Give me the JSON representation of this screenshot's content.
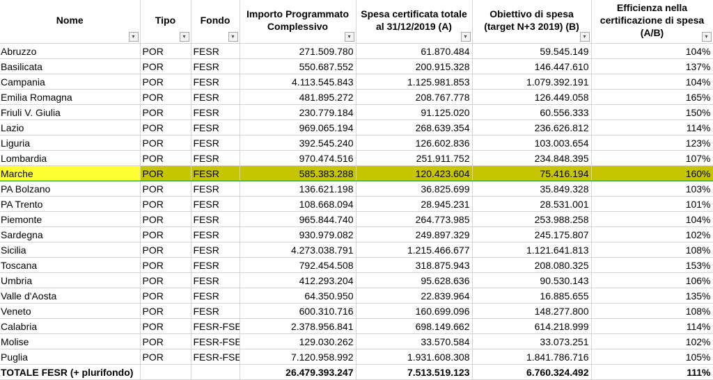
{
  "headers": {
    "nome": "Nome",
    "tipo": "Tipo",
    "fondo": "Fondo",
    "importo": "Importo Programmato Complessivo",
    "spesa": "Spesa certificata totale al 31/12/2019 (A)",
    "obiettivo": "Obiettivo di spesa (target N+3 2019) (B)",
    "efficienza": "Efficienza nella certificazione di spesa (A/B)",
    "filter_glyph": "▾"
  },
  "rows": [
    {
      "nome": "Abruzzo",
      "tipo": "POR",
      "fondo": "FESR",
      "importo": "271.509.780",
      "spesa": "61.870.484",
      "obiettivo": "59.545.149",
      "efficienza": "104%"
    },
    {
      "nome": "Basilicata",
      "tipo": "POR",
      "fondo": "FESR",
      "importo": "550.687.552",
      "spesa": "200.915.328",
      "obiettivo": "146.447.610",
      "efficienza": "137%"
    },
    {
      "nome": "Campania",
      "tipo": "POR",
      "fondo": "FESR",
      "importo": "4.113.545.843",
      "spesa": "1.125.981.853",
      "obiettivo": "1.079.392.191",
      "efficienza": "104%"
    },
    {
      "nome": "Emilia Romagna",
      "tipo": "POR",
      "fondo": "FESR",
      "importo": "481.895.272",
      "spesa": "208.767.778",
      "obiettivo": "126.449.058",
      "efficienza": "165%"
    },
    {
      "nome": "Friuli V. Giulia",
      "tipo": "POR",
      "fondo": "FESR",
      "importo": "230.779.184",
      "spesa": "91.125.020",
      "obiettivo": "60.556.333",
      "efficienza": "150%"
    },
    {
      "nome": "Lazio",
      "tipo": "POR",
      "fondo": "FESR",
      "importo": "969.065.194",
      "spesa": "268.639.354",
      "obiettivo": "236.626.812",
      "efficienza": "114%"
    },
    {
      "nome": "Liguria",
      "tipo": "POR",
      "fondo": "FESR",
      "importo": "392.545.240",
      "spesa": "126.602.836",
      "obiettivo": "103.003.654",
      "efficienza": "123%"
    },
    {
      "nome": "Lombardia",
      "tipo": "POR",
      "fondo": "FESR",
      "importo": "970.474.516",
      "spesa": "251.911.752",
      "obiettivo": "234.848.395",
      "efficienza": "107%"
    },
    {
      "nome": "Marche",
      "tipo": "POR",
      "fondo": "FESR",
      "importo": "585.383.288",
      "spesa": "120.423.604",
      "obiettivo": "75.416.194",
      "efficienza": "160%"
    },
    {
      "nome": "PA Bolzano",
      "tipo": "POR",
      "fondo": "FESR",
      "importo": "136.621.198",
      "spesa": "36.825.699",
      "obiettivo": "35.849.328",
      "efficienza": "103%"
    },
    {
      "nome": "PA Trento",
      "tipo": "POR",
      "fondo": "FESR",
      "importo": "108.668.094",
      "spesa": "28.945.231",
      "obiettivo": "28.531.001",
      "efficienza": "101%"
    },
    {
      "nome": "Piemonte",
      "tipo": "POR",
      "fondo": "FESR",
      "importo": "965.844.740",
      "spesa": "264.773.985",
      "obiettivo": "253.988.258",
      "efficienza": "104%"
    },
    {
      "nome": "Sardegna",
      "tipo": "POR",
      "fondo": "FESR",
      "importo": "930.979.082",
      "spesa": "249.897.329",
      "obiettivo": "245.175.807",
      "efficienza": "102%"
    },
    {
      "nome": "Sicilia",
      "tipo": "POR",
      "fondo": "FESR",
      "importo": "4.273.038.791",
      "spesa": "1.215.466.677",
      "obiettivo": "1.121.641.813",
      "efficienza": "108%"
    },
    {
      "nome": "Toscana",
      "tipo": "POR",
      "fondo": "FESR",
      "importo": "792.454.508",
      "spesa": "318.875.943",
      "obiettivo": "208.080.325",
      "efficienza": "153%"
    },
    {
      "nome": "Umbria",
      "tipo": "POR",
      "fondo": "FESR",
      "importo": "412.293.204",
      "spesa": "95.628.636",
      "obiettivo": "90.530.143",
      "efficienza": "106%"
    },
    {
      "nome": "Valle d'Aosta",
      "tipo": "POR",
      "fondo": "FESR",
      "importo": "64.350.950",
      "spesa": "22.839.964",
      "obiettivo": "16.885.655",
      "efficienza": "135%"
    },
    {
      "nome": "Veneto",
      "tipo": "POR",
      "fondo": "FESR",
      "importo": "600.310.716",
      "spesa": "160.699.096",
      "obiettivo": "148.277.800",
      "efficienza": "108%"
    },
    {
      "nome": "Calabria",
      "tipo": "POR",
      "fondo": "FESR-FSE",
      "importo": "2.378.956.841",
      "spesa": "698.149.662",
      "obiettivo": "614.218.999",
      "efficienza": "114%"
    },
    {
      "nome": "Molise",
      "tipo": "POR",
      "fondo": "FESR-FSE",
      "importo": "129.030.262",
      "spesa": "33.570.584",
      "obiettivo": "33.073.251",
      "efficienza": "102%"
    },
    {
      "nome": "Puglia",
      "tipo": "POR",
      "fondo": "FESR-FSE",
      "importo": "7.120.958.992",
      "spesa": "1.931.608.308",
      "obiettivo": "1.841.786.716",
      "efficienza": "105%"
    }
  ],
  "highlighted_row": "Marche",
  "total": {
    "nome": "TOTALE FESR (+ plurifondo)",
    "tipo": "",
    "fondo": "",
    "importo": "26.479.393.247",
    "spesa": "7.513.519.123",
    "obiettivo": "6.760.324.492",
    "efficienza": "111%"
  },
  "colors": {
    "highlight_name_cell": "#ffff33",
    "highlight_row": "#c7c500",
    "grid": "#d4d4d4"
  }
}
